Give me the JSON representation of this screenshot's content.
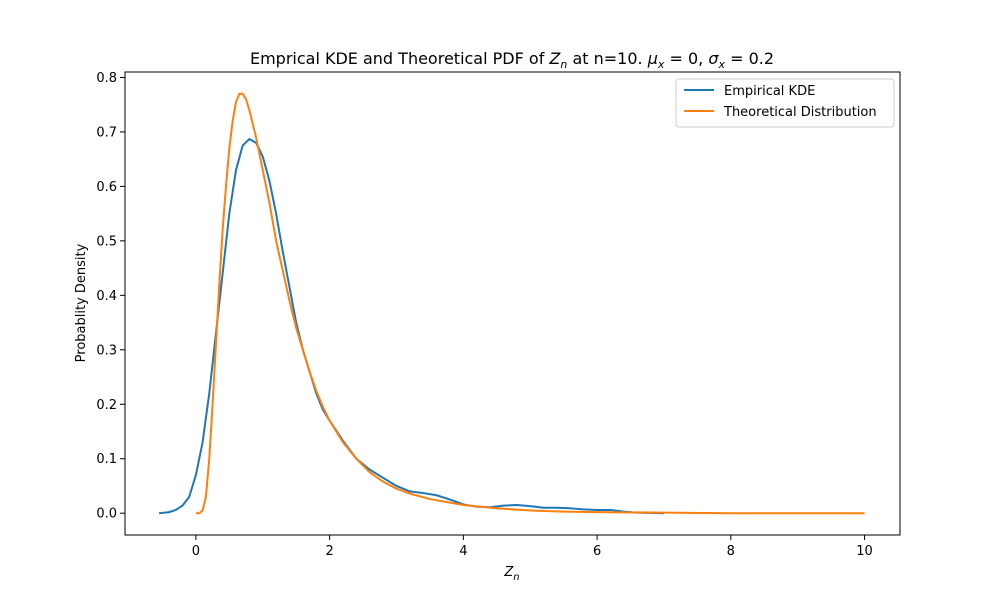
{
  "chart_data": {
    "type": "line",
    "title": {
      "prefix": "Emprical KDE and Theoretical PDF of ",
      "var": "Z",
      "var_sub": "n",
      "mid": " at n=10. ",
      "mu_sym": "μ",
      "mu_sub": "x",
      "mu_val": " = 0, ",
      "sigma_sym": "σ",
      "sigma_sub": "x",
      "sigma_val": " = 0.2"
    },
    "xlabel": {
      "main": "Z",
      "sub": "n"
    },
    "ylabel": "Probablity Density",
    "xlim": [
      -1.06,
      10.53
    ],
    "ylim": [
      -0.04,
      0.81
    ],
    "xticks": [
      0,
      2,
      4,
      6,
      8,
      10
    ],
    "xtick_labels": [
      "0",
      "2",
      "4",
      "6",
      "8",
      "10"
    ],
    "yticks": [
      0.0,
      0.1,
      0.2,
      0.3,
      0.4,
      0.5,
      0.6,
      0.7,
      0.8
    ],
    "ytick_labels": [
      "0.0",
      "0.1",
      "0.2",
      "0.3",
      "0.4",
      "0.5",
      "0.6",
      "0.7",
      "0.8"
    ],
    "grid": false,
    "legend_position": "top-right",
    "series": [
      {
        "name": "Empirical KDE",
        "color": "#1f77b4",
        "points": [
          [
            -0.55,
            0.0
          ],
          [
            -0.4,
            0.002
          ],
          [
            -0.3,
            0.006
          ],
          [
            -0.2,
            0.014
          ],
          [
            -0.1,
            0.03
          ],
          [
            0.0,
            0.07
          ],
          [
            0.1,
            0.13
          ],
          [
            0.2,
            0.22
          ],
          [
            0.3,
            0.33
          ],
          [
            0.4,
            0.44
          ],
          [
            0.5,
            0.55
          ],
          [
            0.6,
            0.63
          ],
          [
            0.7,
            0.675
          ],
          [
            0.8,
            0.687
          ],
          [
            0.9,
            0.68
          ],
          [
            1.0,
            0.655
          ],
          [
            1.1,
            0.61
          ],
          [
            1.2,
            0.55
          ],
          [
            1.3,
            0.48
          ],
          [
            1.4,
            0.415
          ],
          [
            1.5,
            0.35
          ],
          [
            1.6,
            0.3
          ],
          [
            1.7,
            0.26
          ],
          [
            1.8,
            0.22
          ],
          [
            1.9,
            0.19
          ],
          [
            2.0,
            0.17
          ],
          [
            2.2,
            0.133
          ],
          [
            2.4,
            0.1
          ],
          [
            2.6,
            0.08
          ],
          [
            2.8,
            0.065
          ],
          [
            3.0,
            0.05
          ],
          [
            3.2,
            0.04
          ],
          [
            3.4,
            0.037
          ],
          [
            3.6,
            0.033
          ],
          [
            3.8,
            0.025
          ],
          [
            4.0,
            0.016
          ],
          [
            4.2,
            0.012
          ],
          [
            4.4,
            0.011
          ],
          [
            4.6,
            0.014
          ],
          [
            4.8,
            0.015
          ],
          [
            5.0,
            0.013
          ],
          [
            5.2,
            0.01
          ],
          [
            5.4,
            0.01
          ],
          [
            5.6,
            0.009
          ],
          [
            5.8,
            0.007
          ],
          [
            6.0,
            0.006
          ],
          [
            6.2,
            0.006
          ],
          [
            6.4,
            0.003
          ],
          [
            6.6,
            0.001
          ],
          [
            7.0,
            0.0
          ]
        ]
      },
      {
        "name": "Theoretical Distribution",
        "color": "#ff7f0e",
        "points": [
          [
            0.0,
            0.0
          ],
          [
            0.05,
            0.0
          ],
          [
            0.1,
            0.005
          ],
          [
            0.15,
            0.03
          ],
          [
            0.2,
            0.1
          ],
          [
            0.25,
            0.2
          ],
          [
            0.3,
            0.31
          ],
          [
            0.35,
            0.42
          ],
          [
            0.4,
            0.52
          ],
          [
            0.45,
            0.6
          ],
          [
            0.5,
            0.67
          ],
          [
            0.55,
            0.72
          ],
          [
            0.6,
            0.755
          ],
          [
            0.65,
            0.77
          ],
          [
            0.7,
            0.77
          ],
          [
            0.75,
            0.76
          ],
          [
            0.8,
            0.74
          ],
          [
            0.9,
            0.69
          ],
          [
            1.0,
            0.63
          ],
          [
            1.1,
            0.57
          ],
          [
            1.2,
            0.5
          ],
          [
            1.3,
            0.445
          ],
          [
            1.4,
            0.39
          ],
          [
            1.5,
            0.34
          ],
          [
            1.6,
            0.3
          ],
          [
            1.7,
            0.26
          ],
          [
            1.8,
            0.225
          ],
          [
            1.9,
            0.195
          ],
          [
            2.0,
            0.17
          ],
          [
            2.2,
            0.13
          ],
          [
            2.4,
            0.1
          ],
          [
            2.6,
            0.075
          ],
          [
            2.8,
            0.058
          ],
          [
            3.0,
            0.045
          ],
          [
            3.2,
            0.036
          ],
          [
            3.5,
            0.026
          ],
          [
            4.0,
            0.015
          ],
          [
            4.5,
            0.009
          ],
          [
            5.0,
            0.005
          ],
          [
            5.5,
            0.003
          ],
          [
            6.0,
            0.002
          ],
          [
            7.0,
            0.001
          ],
          [
            8.0,
            0.0
          ],
          [
            9.0,
            0.0
          ],
          [
            10.0,
            0.0
          ]
        ]
      }
    ]
  }
}
